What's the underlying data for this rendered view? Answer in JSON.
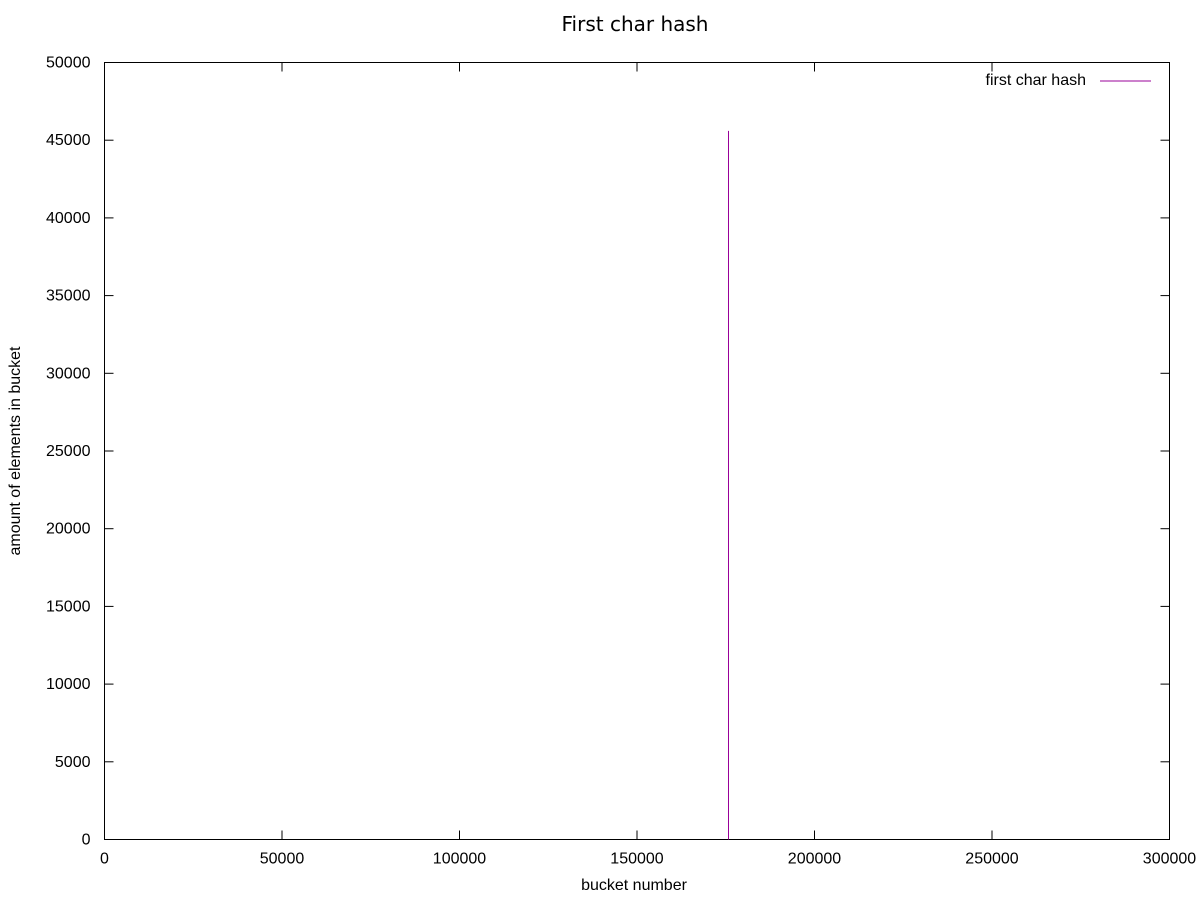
{
  "chart_data": {
    "type": "line",
    "title": "First char hash",
    "xlabel": "bucket number",
    "ylabel": "amount of elements in bucket",
    "xlim": [
      0,
      300000
    ],
    "ylim": [
      0,
      50000
    ],
    "xticks": [
      0,
      50000,
      100000,
      150000,
      200000,
      250000,
      300000
    ],
    "yticks": [
      0,
      5000,
      10000,
      15000,
      20000,
      25000,
      30000,
      35000,
      40000,
      45000,
      50000
    ],
    "grid": false,
    "legend_position": "top-right",
    "series": [
      {
        "name": "first char hash",
        "color": "#990099",
        "points": [
          {
            "x": 175500,
            "y": 45600
          }
        ]
      }
    ]
  }
}
